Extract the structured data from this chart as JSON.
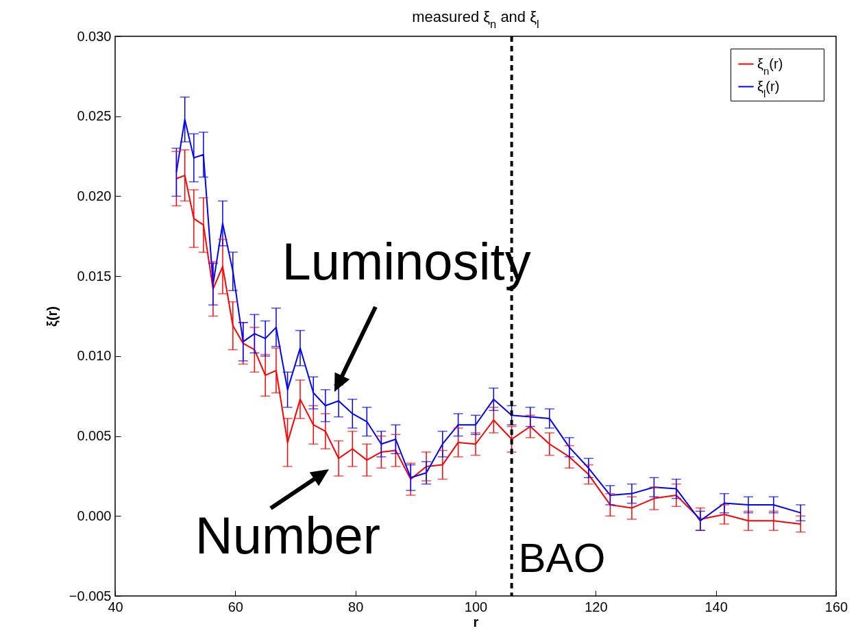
{
  "chart_data": {
    "type": "line",
    "title": "measured ξ$_{n}$ and ξ$_{l}$",
    "xlabel": "r",
    "ylabel": "ξ(r)",
    "x": [
      50.2,
      51.6,
      53.1,
      54.7,
      56.3,
      57.9,
      59.6,
      61.3,
      63.2,
      65.0,
      66.8,
      68.7,
      70.8,
      73.0,
      75.0,
      77.2,
      79.5,
      81.9,
      84.3,
      86.7,
      89.2,
      91.8,
      94.5,
      97.1,
      100.0,
      103.0,
      106.0,
      109.1,
      112.3,
      115.6,
      118.8,
      122.4,
      126.0,
      129.7,
      133.4,
      137.4,
      141.4,
      145.4,
      149.6,
      154.1
    ],
    "series": [
      {
        "name": "ξ$_{n}$(r)",
        "color": "#ff0000",
        "values": [
          0.0211,
          0.0213,
          0.0186,
          0.0182,
          0.0142,
          0.0156,
          0.0119,
          0.0108,
          0.0104,
          0.0088,
          0.0091,
          0.0046,
          0.0073,
          0.0057,
          0.0053,
          0.0036,
          0.0042,
          0.0035,
          0.004,
          0.0041,
          0.0023,
          0.0031,
          0.0032,
          0.0046,
          0.0045,
          0.006,
          0.0048,
          0.0056,
          0.0045,
          0.0037,
          0.0026,
          0.0007,
          0.0005,
          0.0011,
          0.0013,
          -0.0002,
          0.0001,
          -0.0003,
          -0.0003,
          -0.0005
        ],
        "errors": [
          0.0017,
          0.0016,
          0.0018,
          0.0017,
          0.0017,
          0.0017,
          0.0015,
          0.0013,
          0.0014,
          0.0013,
          0.0014,
          0.0015,
          0.0012,
          0.0012,
          0.0011,
          0.0011,
          0.0011,
          0.001,
          0.001,
          0.001,
          0.001,
          0.0009,
          0.0009,
          0.0009,
          0.0007,
          0.0008,
          0.0008,
          0.0007,
          0.0007,
          0.0007,
          0.0006,
          0.0007,
          0.0007,
          0.0007,
          0.0007,
          0.0007,
          0.0006,
          0.0006,
          0.0006,
          0.0005
        ]
      },
      {
        "name": "ξ$_{l}$(r)",
        "color": "#0000ff",
        "values": [
          0.0215,
          0.0248,
          0.0224,
          0.0226,
          0.0145,
          0.0183,
          0.0153,
          0.0109,
          0.0114,
          0.0111,
          0.0118,
          0.0079,
          0.0105,
          0.0077,
          0.0069,
          0.0072,
          0.0064,
          0.0059,
          0.0045,
          0.0048,
          0.0024,
          0.0027,
          0.0045,
          0.0057,
          0.0057,
          0.0073,
          0.0063,
          0.0062,
          0.0061,
          0.0043,
          0.003,
          0.0013,
          0.0014,
          0.0018,
          0.0017,
          -0.0003,
          0.0008,
          0.0007,
          0.0007,
          0.0002
        ],
        "errors": [
          0.0015,
          0.0014,
          0.0015,
          0.0014,
          0.0013,
          0.0014,
          0.0012,
          0.0012,
          0.0012,
          0.0011,
          0.0012,
          0.0011,
          0.0011,
          0.001,
          0.001,
          0.001,
          0.0009,
          0.0009,
          0.0008,
          0.0009,
          0.0008,
          0.0007,
          0.0008,
          0.0007,
          0.0006,
          0.0007,
          0.0006,
          0.0006,
          0.0006,
          0.0006,
          0.0006,
          0.0006,
          0.0006,
          0.0006,
          0.0006,
          0.0006,
          0.0006,
          0.0005,
          0.0005,
          0.0005
        ]
      }
    ],
    "xlim": [
      40,
      160
    ],
    "xticks": [
      40,
      60,
      80,
      100,
      120,
      140,
      160
    ],
    "ylim": [
      -0.005,
      0.03
    ],
    "yticks": [
      {
        "value": -0.005,
        "label": "−0.005"
      },
      {
        "value": 0,
        "label": "0.000"
      },
      {
        "value": 0.005,
        "label": "0.005"
      },
      {
        "value": 0.01,
        "label": "0.010"
      },
      {
        "value": 0.015,
        "label": "0.015"
      },
      {
        "value": 0.02,
        "label": "0.020"
      },
      {
        "value": 0.025,
        "label": "0.025"
      },
      {
        "value": 0.03,
        "label": "0.030"
      }
    ],
    "ref_lines": [
      {
        "axis": "x",
        "value": 106,
        "label": "BAO",
        "color": "#000000",
        "line_style": "dashed"
      }
    ],
    "annotations": [
      "Luminosity",
      "Number"
    ],
    "grid": false,
    "legend": "top right",
    "marker": "none",
    "line_style": "solid"
  }
}
